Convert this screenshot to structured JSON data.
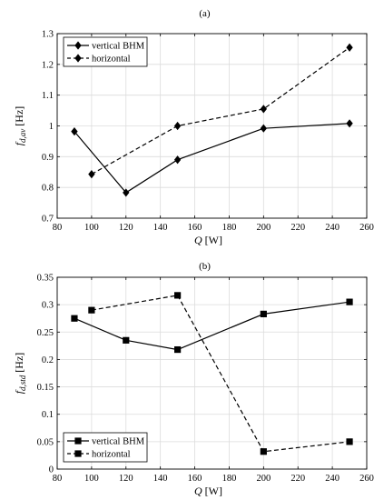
{
  "chart_data": [
    {
      "panel_label": "(a)",
      "type": "line",
      "xlabel_sym": "Q",
      "xlabel_unit": " [W]",
      "ylabel_sym": "f",
      "ylabel_sub": "d,av",
      "ylabel_unit": " [Hz]",
      "xlim": [
        80,
        260
      ],
      "ylim": [
        0.7,
        1.3
      ],
      "xticks": [
        80,
        100,
        120,
        140,
        160,
        180,
        200,
        220,
        240,
        260
      ],
      "yticks": [
        0.7,
        0.8,
        0.9,
        1,
        1.1,
        1.2,
        1.3
      ],
      "grid": true,
      "legend_position": "top-left",
      "marker": "diamond",
      "series": [
        {
          "name": "vertical BHM",
          "dash": "solid",
          "x": [
            90,
            120,
            150,
            200,
            250
          ],
          "y": [
            0.982,
            0.783,
            0.89,
            0.992,
            1.008
          ]
        },
        {
          "name": "horizontal",
          "dash": "dashed",
          "x": [
            100,
            150,
            200,
            250
          ],
          "y": [
            0.843,
            1.0,
            1.055,
            1.255
          ]
        }
      ]
    },
    {
      "panel_label": "(b)",
      "type": "line",
      "xlabel_sym": "Q",
      "xlabel_unit": " [W]",
      "ylabel_sym": "f",
      "ylabel_sub": "d,std",
      "ylabel_unit": " [Hz]",
      "xlim": [
        80,
        260
      ],
      "ylim": [
        0,
        0.35
      ],
      "xticks": [
        80,
        100,
        120,
        140,
        160,
        180,
        200,
        220,
        240,
        260
      ],
      "yticks": [
        0,
        0.05,
        0.1,
        0.15,
        0.2,
        0.25,
        0.3,
        0.35
      ],
      "grid": true,
      "legend_position": "bottom-left",
      "marker": "square",
      "series": [
        {
          "name": "vertical BHM",
          "dash": "solid",
          "x": [
            90,
            120,
            150,
            200,
            250
          ],
          "y": [
            0.275,
            0.235,
            0.218,
            0.283,
            0.305
          ]
        },
        {
          "name": "horizontal",
          "dash": "dashed",
          "x": [
            100,
            150,
            200,
            250
          ],
          "y": [
            0.29,
            0.317,
            0.032,
            0.05
          ]
        }
      ]
    }
  ]
}
